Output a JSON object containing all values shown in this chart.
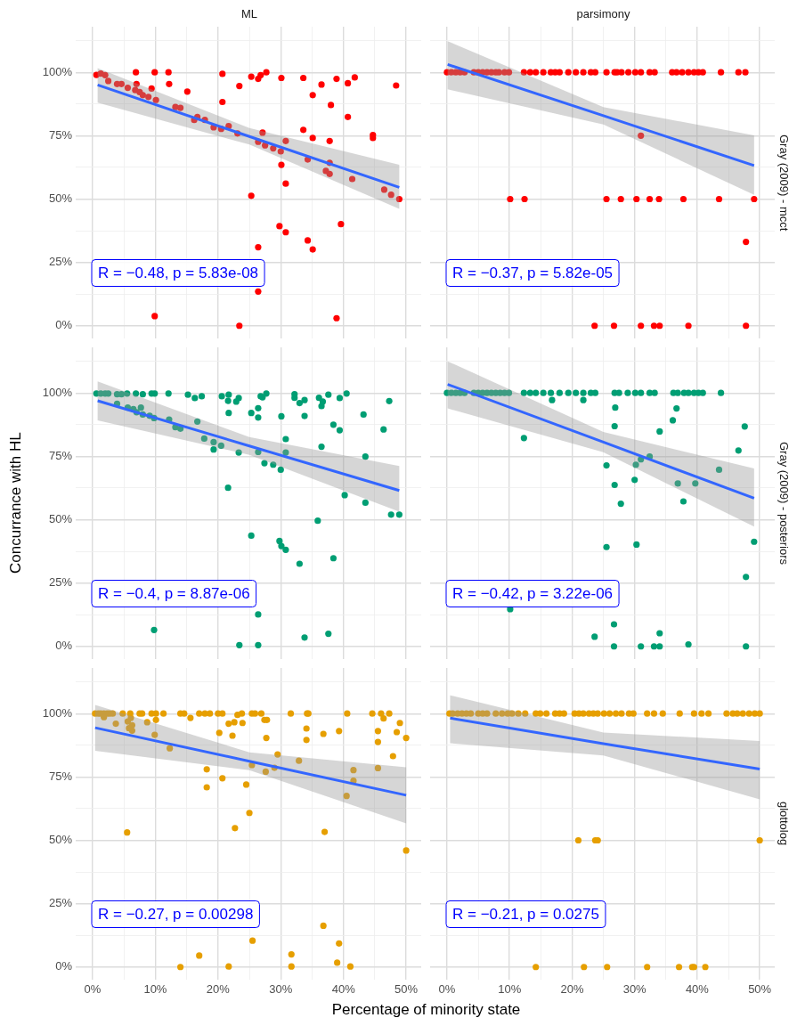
{
  "chart_data": [
    {
      "type": "scatter",
      "title": "ML",
      "tick_labels": "y",
      "grid": true,
      "legend": false,
      "xlim": [
        -2.7,
        52.4
      ],
      "ylim": [
        -5,
        118
      ],
      "xticks": [
        {
          "value": 0,
          "label": null
        },
        {
          "value": 5,
          "label": null
        },
        {
          "value": 10,
          "label": null
        },
        {
          "value": 15,
          "label": null
        },
        {
          "value": 20,
          "label": null
        },
        {
          "value": 25,
          "label": null
        },
        {
          "value": 30,
          "label": null
        },
        {
          "value": 35,
          "label": null
        },
        {
          "value": 40,
          "label": null
        },
        {
          "value": 45,
          "label": null
        },
        {
          "value": 50,
          "label": null
        }
      ],
      "yticks": [
        {
          "value": 0,
          "label": "0%"
        },
        {
          "value": 12.5,
          "label": null
        },
        {
          "value": 25,
          "label": "25%"
        },
        {
          "value": 37.5,
          "label": null
        },
        {
          "value": 50,
          "label": "50%"
        },
        {
          "value": 62.5,
          "label": null
        },
        {
          "value": 75,
          "label": "75%"
        },
        {
          "value": 87.5,
          "label": null
        },
        {
          "value": 100,
          "label": "100%"
        },
        {
          "value": 112.5,
          "label": null
        }
      ],
      "annotations": [
        "R = −0.48, p = 5.83e-08"
      ],
      "series": [
        {
          "type": "scatter",
          "color": "#ff0000",
          "marker": "circle",
          "x": [
            0.6,
            1.3,
            2,
            2.5,
            3.9,
            4.6,
            5.6,
            6.9,
            7,
            6.8,
            7.5,
            8,
            8.9,
            9.4,
            9.9,
            10.1,
            12.1,
            12.2,
            13.2,
            14,
            15.1,
            16.2,
            16.7,
            17.9,
            19.3,
            20.5,
            20.7,
            20.7,
            21.7,
            23.1,
            23.4,
            23.4,
            25.3,
            25.3,
            26.4,
            26.8,
            27.7,
            26.4,
            27.1,
            27.5,
            28.8,
            30,
            30.1,
            30.1,
            30.8,
            30.8,
            29.8,
            30.8,
            26.4,
            26.4,
            9.9,
            33.6,
            33.6,
            35.1,
            35.1,
            34.3,
            34.3,
            35.1,
            36.5,
            38,
            37.8,
            37.8,
            37.2,
            37.8,
            38.9,
            39.6,
            38.9,
            40.7,
            40.7,
            41.8,
            41.4,
            44.7,
            44.7,
            48.4,
            46.5,
            47.6,
            48.9
          ],
          "values": [
            99,
            99.5,
            98.9,
            96.6,
            95.4,
            95.4,
            93.9,
            100,
            95.4,
            93,
            92.2,
            91,
            90.3,
            93.6,
            100,
            89.1,
            100,
            95.4,
            86.3,
            86,
            92.4,
            81.2,
            82.4,
            81.2,
            78.3,
            77.7,
            99.4,
            88.3,
            78.8,
            75.9,
            94.6,
            0,
            98.3,
            51.3,
            97.4,
            98.9,
            100,
            72.6,
            76.2,
            71.2,
            70,
            68.8,
            63.5,
            97.8,
            72.9,
            56.1,
            39.3,
            36.9,
            31,
            13.5,
            3.8,
            97.8,
            77.3,
            91,
            74.1,
            65.6,
            33.7,
            30.1,
            95.2,
            87.1,
            72.9,
            64.3,
            61.1,
            59.9,
            97.4,
            40.1,
            3,
            95.7,
            82.4,
            98,
            57.9,
            75.3,
            74.1,
            94.8,
            53.7,
            51.7,
            50
          ]
        },
        {
          "type": "line",
          "color": "#3366ff",
          "marker": "none",
          "x": [
            0.8,
            25,
            48.9
          ],
          "values": [
            95,
            74.7,
            54.6
          ],
          "lower": [
            88,
            71.5,
            46.1
          ],
          "upper": [
            101.7,
            78,
            63.5
          ]
        }
      ]
    },
    {
      "type": "scatter",
      "title": "parsimony",
      "y2label": "Gray (2009) - mcct",
      "tick_labels": false,
      "grid": true,
      "legend": false,
      "xlim": [
        -2.7,
        52.4
      ],
      "ylim": [
        -5,
        118
      ],
      "xticks": [
        {
          "value": 0,
          "label": null
        },
        {
          "value": 5,
          "label": null
        },
        {
          "value": 10,
          "label": null
        },
        {
          "value": 15,
          "label": null
        },
        {
          "value": 20,
          "label": null
        },
        {
          "value": 25,
          "label": null
        },
        {
          "value": 30,
          "label": null
        },
        {
          "value": 35,
          "label": null
        },
        {
          "value": 40,
          "label": null
        },
        {
          "value": 45,
          "label": null
        },
        {
          "value": 50,
          "label": null
        }
      ],
      "yticks": [
        {
          "value": 0,
          "label": null
        },
        {
          "value": 12.5,
          "label": null
        },
        {
          "value": 25,
          "label": null
        },
        {
          "value": 37.5,
          "label": null
        },
        {
          "value": 50,
          "label": null
        },
        {
          "value": 62.5,
          "label": null
        },
        {
          "value": 75,
          "label": null
        },
        {
          "value": 87.5,
          "label": null
        },
        {
          "value": 100,
          "label": null
        },
        {
          "value": 112.5,
          "label": null
        }
      ],
      "annotations": [
        "R = −0.37, p = 5.82e-05"
      ],
      "series": [
        {
          "type": "scatter",
          "color": "#ff0000",
          "marker": "circle",
          "x": [
            0,
            0.7,
            1.4,
            2.1,
            2.8,
            4.3,
            5,
            5.7,
            6.4,
            7.1,
            7.8,
            8.3,
            9.2,
            9.9,
            12.3,
            13.3,
            14.2,
            15.4,
            16.6,
            17.3,
            18,
            19.4,
            20.6,
            21.8,
            23,
            23.7,
            25.5,
            26.8,
            27.2,
            27.9,
            29,
            30.1,
            31,
            32.4,
            33.2,
            36,
            36.7,
            37.6,
            38.6,
            39.5,
            40.2,
            40.9,
            43.8,
            46.6,
            47.7,
            10.1,
            12.4,
            25.5,
            27.8,
            30.3,
            32.4,
            33.9,
            37.8,
            43.5,
            49.1,
            31,
            47.8,
            23.6,
            26.7,
            31,
            33.1,
            34,
            38.6,
            47.8
          ],
          "values": [
            100,
            100,
            100,
            100,
            100,
            100,
            100,
            100,
            100,
            100,
            100,
            100,
            100,
            100,
            100,
            100,
            100,
            100,
            100,
            100,
            100,
            100,
            100,
            100,
            100,
            100,
            100,
            100,
            100,
            100,
            100,
            100,
            100,
            100,
            100,
            100,
            100,
            100,
            100,
            100,
            100,
            100,
            100,
            100,
            100,
            50,
            50,
            50,
            50,
            50,
            50,
            50,
            50,
            50,
            50,
            75,
            33.1,
            0,
            0,
            0,
            0,
            0,
            0,
            0
          ]
        },
        {
          "type": "line",
          "color": "#3366ff",
          "marker": "none",
          "x": [
            0.1,
            25,
            49.1
          ],
          "values": [
            103.1,
            82.9,
            63.2
          ],
          "lower": [
            93.3,
            79.4,
            51.7
          ],
          "upper": [
            112.3,
            86.3,
            75.1
          ]
        }
      ]
    },
    {
      "type": "scatter",
      "ylabel": "Concurrance with HL",
      "tick_labels": "y",
      "grid": true,
      "legend": false,
      "xlim": [
        -2.7,
        52.4
      ],
      "ylim": [
        -5,
        118
      ],
      "xticks": [
        {
          "value": 0,
          "label": null
        },
        {
          "value": 5,
          "label": null
        },
        {
          "value": 10,
          "label": null
        },
        {
          "value": 15,
          "label": null
        },
        {
          "value": 20,
          "label": null
        },
        {
          "value": 25,
          "label": null
        },
        {
          "value": 30,
          "label": null
        },
        {
          "value": 35,
          "label": null
        },
        {
          "value": 40,
          "label": null
        },
        {
          "value": 45,
          "label": null
        },
        {
          "value": 50,
          "label": null
        }
      ],
      "yticks": [
        {
          "value": 0,
          "label": "0%"
        },
        {
          "value": 12.5,
          "label": null
        },
        {
          "value": 25,
          "label": "25%"
        },
        {
          "value": 37.5,
          "label": null
        },
        {
          "value": 50,
          "label": "50%"
        },
        {
          "value": 62.5,
          "label": null
        },
        {
          "value": 75,
          "label": "75%"
        },
        {
          "value": 87.5,
          "label": null
        },
        {
          "value": 100,
          "label": "100%"
        },
        {
          "value": 112.5,
          "label": null
        }
      ],
      "annotations": [
        "R = −0.4, p = 8.87e-06"
      ],
      "series": [
        {
          "type": "scatter",
          "color": "#009e73",
          "marker": "circle",
          "x": [
            0.6,
            1.3,
            2,
            2.5,
            3.9,
            4.6,
            5.5,
            6.9,
            8,
            9.4,
            9.9,
            12.1,
            15.2,
            16.3,
            17.4,
            20.6,
            21.7,
            21.6,
            22.9,
            23.3,
            26.8,
            27.1,
            27.7,
            32.2,
            32.2,
            33,
            33.8,
            36.1,
            36.7,
            36.5,
            37.6,
            39.4,
            40.5,
            47.3,
            3.9,
            5.6,
            6.5,
            7,
            7.7,
            8,
            9.1,
            9.8,
            12.2,
            13.2,
            14,
            16.7,
            17.8,
            19.3,
            19.3,
            20.5,
            21.7,
            21.6,
            23.3,
            25.3,
            25.3,
            26.4,
            26.4,
            26.4,
            27.4,
            28.8,
            30,
            30.1,
            29.8,
            30.1,
            30.8,
            30.8,
            30.8,
            33.8,
            33,
            33.8,
            26.4,
            26.4,
            23.4,
            9.8,
            35.9,
            36.5,
            38.4,
            38.4,
            39.4,
            40.2,
            37.6,
            43.2,
            43.5,
            43.5,
            46.4,
            47.6,
            48.9
          ],
          "values": [
            99.8,
            99.8,
            99.8,
            99.8,
            99.5,
            99.5,
            99.8,
            99.8,
            99.5,
            99.8,
            99.8,
            99.8,
            99.3,
            98,
            98.7,
            98.7,
            99.3,
            96.9,
            96.6,
            98,
            98.7,
            98.3,
            99.8,
            99.5,
            98.1,
            96,
            97.2,
            98.1,
            96.6,
            94.8,
            99.3,
            98,
            99.8,
            96.8,
            95.7,
            94.2,
            93.6,
            92.4,
            94.2,
            91.5,
            91,
            90.1,
            89.5,
            86.5,
            85.9,
            88.7,
            82,
            80.6,
            77.7,
            79.2,
            92.1,
            62.6,
            76.5,
            92.1,
            43.7,
            94,
            90.3,
            76.7,
            72.3,
            71.7,
            69.7,
            90.8,
            41.6,
            39.6,
            81.8,
            76.5,
            38.1,
            90.9,
            32.6,
            3.5,
            12.6,
            0.5,
            0.5,
            6.5,
            49.6,
            78.8,
            87.5,
            34.8,
            85.3,
            59.7,
            5,
            91.5,
            74.9,
            56.7,
            85.6,
            52,
            52
          ]
        },
        {
          "type": "line",
          "color": "#3366ff",
          "marker": "none",
          "x": [
            0.8,
            25,
            48.9
          ],
          "values": [
            96.9,
            79.1,
            61.5
          ],
          "lower": [
            89.2,
            75.6,
            53.2
          ],
          "upper": [
            104.6,
            82.6,
            71.2
          ]
        }
      ]
    },
    {
      "type": "scatter",
      "y2label": "Gray (2009) - posteriors",
      "tick_labels": false,
      "grid": true,
      "legend": false,
      "xlim": [
        -2.7,
        52.4
      ],
      "ylim": [
        -5,
        118
      ],
      "xticks": [
        {
          "value": 0,
          "label": null
        },
        {
          "value": 5,
          "label": null
        },
        {
          "value": 10,
          "label": null
        },
        {
          "value": 15,
          "label": null
        },
        {
          "value": 20,
          "label": null
        },
        {
          "value": 25,
          "label": null
        },
        {
          "value": 30,
          "label": null
        },
        {
          "value": 35,
          "label": null
        },
        {
          "value": 40,
          "label": null
        },
        {
          "value": 45,
          "label": null
        },
        {
          "value": 50,
          "label": null
        }
      ],
      "yticks": [
        {
          "value": 0,
          "label": null
        },
        {
          "value": 12.5,
          "label": null
        },
        {
          "value": 25,
          "label": null
        },
        {
          "value": 37.5,
          "label": null
        },
        {
          "value": 50,
          "label": null
        },
        {
          "value": 62.5,
          "label": null
        },
        {
          "value": 75,
          "label": null
        },
        {
          "value": 87.5,
          "label": null
        },
        {
          "value": 100,
          "label": null
        },
        {
          "value": 112.5,
          "label": null
        }
      ],
      "annotations": [
        "R = −0.42, p = 3.22e-06"
      ],
      "series": [
        {
          "type": "scatter",
          "color": "#009e73",
          "marker": "circle",
          "x": [
            0,
            0.7,
            1.4,
            2.1,
            2.8,
            4.3,
            5,
            5.7,
            6.4,
            7.1,
            7.8,
            8.5,
            9.2,
            9.9,
            12.3,
            13.3,
            14.2,
            15.4,
            16.6,
            18,
            19.4,
            20.6,
            21.8,
            23,
            23.7,
            26.8,
            27.5,
            28.9,
            30.1,
            31,
            32.4,
            33.2,
            36.2,
            36.9,
            37.9,
            38.6,
            39.5,
            40.2,
            40.9,
            43.8,
            16.8,
            21.8,
            26.9,
            26.8,
            12.3,
            36.7,
            36.1,
            34,
            47.6,
            46.6,
            32.4,
            31,
            30.2,
            25.5,
            43.5,
            26.8,
            30,
            36.9,
            39.7,
            27.8,
            37.8,
            25.5,
            30.3,
            49.1,
            47.8,
            10.1,
            26.7,
            23.6,
            34,
            26.7,
            31,
            33.1,
            34,
            38.6,
            47.8
          ],
          "values": [
            100,
            100,
            100,
            100,
            100,
            100,
            100,
            100,
            100,
            100,
            100,
            100,
            100,
            100,
            100,
            100,
            100,
            100,
            100,
            100,
            100,
            100,
            100,
            100,
            100,
            100,
            100,
            100,
            100,
            100,
            100,
            100,
            100,
            100,
            100,
            100,
            100,
            100,
            100,
            100,
            97.2,
            97.2,
            94.2,
            86.9,
            82.2,
            93.9,
            89.2,
            84.8,
            86.8,
            77.3,
            74.9,
            73.8,
            71.7,
            71.4,
            69.7,
            63.7,
            65.7,
            64.3,
            64.3,
            56.3,
            57.2,
            39.2,
            40.2,
            41.3,
            27.4,
            14.7,
            8.7,
            3.8,
            5.2,
            0,
            0,
            0,
            0,
            0.8,
            0
          ]
        },
        {
          "type": "line",
          "color": "#3366ff",
          "marker": "none",
          "x": [
            0.1,
            25,
            49.1
          ],
          "values": [
            103.4,
            80.6,
            58.5
          ],
          "lower": [
            93.9,
            76.6,
            47.3
          ],
          "upper": [
            112.5,
            84.6,
            70.2
          ]
        }
      ]
    },
    {
      "type": "scatter",
      "xlabel": "Percentage of minority state",
      "grid": true,
      "legend": false,
      "xlim": [
        -2.7,
        52.4
      ],
      "ylim": [
        -5,
        118
      ],
      "xticks": [
        {
          "value": 0,
          "label": "0%"
        },
        {
          "value": 5,
          "label": null
        },
        {
          "value": 10,
          "label": "10%"
        },
        {
          "value": 15,
          "label": null
        },
        {
          "value": 20,
          "label": "20%"
        },
        {
          "value": 25,
          "label": null
        },
        {
          "value": 30,
          "label": "30%"
        },
        {
          "value": 35,
          "label": null
        },
        {
          "value": 40,
          "label": "40%"
        },
        {
          "value": 45,
          "label": null
        },
        {
          "value": 50,
          "label": "50%"
        }
      ],
      "yticks": [
        {
          "value": 0,
          "label": "0%"
        },
        {
          "value": 12.5,
          "label": null
        },
        {
          "value": 25,
          "label": "25%"
        },
        {
          "value": 37.5,
          "label": null
        },
        {
          "value": 50,
          "label": "50%"
        },
        {
          "value": 62.5,
          "label": null
        },
        {
          "value": 75,
          "label": "75%"
        },
        {
          "value": 87.5,
          "label": null
        },
        {
          "value": 100,
          "label": "100%"
        },
        {
          "value": 112.5,
          "label": null
        }
      ],
      "annotations": [
        "R = −0.27, p = 0.00298"
      ],
      "series": [
        {
          "type": "scatter",
          "color": "#e69f00",
          "marker": "circle",
          "x": [
            0.4,
            0.9,
            1.3,
            1.8,
            2.3,
            2.7,
            3.2,
            4.8,
            6,
            7.5,
            7.9,
            9.4,
            10.1,
            11.3,
            14,
            14.6,
            17,
            17.9,
            18.7,
            20,
            20.7,
            23.8,
            25.4,
            25.9,
            26.9,
            31.6,
            34.2,
            34.4,
            40.6,
            44.6,
            46,
            47.3,
            15.6,
            23.1,
            27.4,
            27.8,
            46.4,
            10.1,
            6.1,
            1.8,
            3.7,
            5.6,
            5.8,
            6.3,
            6.3,
            8.7,
            9.9,
            12.3,
            18.2,
            18.2,
            20.2,
            20.7,
            21.7,
            22.3,
            22.6,
            22.7,
            23.9,
            24.5,
            25,
            25.4,
            27.7,
            27.6,
            29,
            29.5,
            32.9,
            34.1,
            34.1,
            36.8,
            37,
            39.3,
            40.5,
            41.6,
            41.6,
            45.5,
            45.5,
            45.5,
            47.9,
            48.5,
            49,
            50,
            50,
            5.5,
            36.8,
            39.3,
            39,
            41.1,
            31.7,
            31.7,
            25.5,
            21.7,
            17,
            14
          ],
          "values": [
            100,
            100,
            100,
            100,
            100,
            100,
            100,
            100,
            100,
            100,
            100,
            100,
            100,
            100,
            100,
            100,
            100,
            100,
            100,
            100,
            100,
            100,
            100,
            100,
            100,
            100,
            100,
            100,
            100,
            100,
            100,
            100,
            98.3,
            99.5,
            97.5,
            97.5,
            98.1,
            97.5,
            98.3,
            98.6,
            96,
            96.9,
            94.2,
            95.4,
            93.3,
            96.6,
            91.6,
            86.3,
            78,
            70.9,
            92.4,
            74.5,
            96,
            91.3,
            96.6,
            54.8,
            96.3,
            72,
            60.8,
            79.7,
            90.4,
            77.1,
            78.6,
            83.9,
            81.4,
            94.1,
            89.6,
            92,
            53.3,
            93.1,
            67.5,
            77.7,
            73.5,
            93.1,
            88.8,
            78.5,
            83.2,
            92.7,
            96.3,
            90.4,
            46,
            53.1,
            16.3,
            9.3,
            1.7,
            0.2,
            5,
            0.2,
            10.4,
            0.2,
            4.5,
            0
          ]
        },
        {
          "type": "line",
          "color": "#3366ff",
          "marker": "none",
          "x": [
            0.4,
            25,
            50
          ],
          "values": [
            94.4,
            81.2,
            67.8
          ],
          "lower": [
            85.3,
            77.7,
            56.7
          ],
          "upper": [
            103.4,
            84.7,
            78.8
          ]
        }
      ]
    },
    {
      "type": "scatter",
      "y2label": "glottolog",
      "tick_labels": "x",
      "grid": true,
      "legend": false,
      "xlim": [
        -2.7,
        52.4
      ],
      "ylim": [
        -5,
        118
      ],
      "xticks": [
        {
          "value": 0,
          "label": "0%"
        },
        {
          "value": 5,
          "label": null
        },
        {
          "value": 10,
          "label": "10%"
        },
        {
          "value": 15,
          "label": null
        },
        {
          "value": 20,
          "label": "20%"
        },
        {
          "value": 25,
          "label": null
        },
        {
          "value": 30,
          "label": "30%"
        },
        {
          "value": 35,
          "label": null
        },
        {
          "value": 40,
          "label": "40%"
        },
        {
          "value": 45,
          "label": null
        },
        {
          "value": 50,
          "label": "50%"
        }
      ],
      "yticks": [
        {
          "value": 0,
          "label": null
        },
        {
          "value": 12.5,
          "label": null
        },
        {
          "value": 25,
          "label": null
        },
        {
          "value": 37.5,
          "label": null
        },
        {
          "value": 50,
          "label": null
        },
        {
          "value": 62.5,
          "label": null
        },
        {
          "value": 75,
          "label": null
        },
        {
          "value": 87.5,
          "label": null
        },
        {
          "value": 100,
          "label": null
        },
        {
          "value": 112.5,
          "label": null
        }
      ],
      "annotations": [
        "R = −0.21, p = 0.0275"
      ],
      "series": [
        {
          "type": "scatter",
          "color": "#e69f00",
          "marker": "circle",
          "x": [
            0.4,
            0.9,
            1.7,
            2.4,
            3.1,
            3.8,
            5,
            5.7,
            6.4,
            7.8,
            8.8,
            9.7,
            10.4,
            11.4,
            12.5,
            14.2,
            14.9,
            15.9,
            17.3,
            18,
            18.7,
            20.4,
            21.1,
            21.8,
            22.7,
            23.4,
            24.1,
            25.1,
            26,
            27,
            27.9,
            29.1,
            29.8,
            32,
            33.1,
            34.5,
            37.2,
            39.5,
            40.7,
            41.8,
            44.7,
            45.7,
            46.4,
            47.3,
            48.3,
            49.2,
            50,
            21,
            23.7,
            24.1,
            50,
            14.2,
            21.9,
            25.6,
            32,
            37.1,
            39.2,
            39.5,
            41.3
          ],
          "values": [
            100,
            100,
            100,
            100,
            100,
            100,
            100,
            100,
            100,
            100,
            100,
            100,
            100,
            100,
            100,
            100,
            100,
            100,
            100,
            100,
            100,
            100,
            100,
            100,
            100,
            100,
            100,
            100,
            100,
            100,
            100,
            100,
            100,
            100,
            100,
            100,
            100,
            100,
            100,
            100,
            100,
            100,
            100,
            100,
            100,
            100,
            100,
            50,
            50,
            50,
            50,
            0,
            0,
            0,
            0,
            0,
            0,
            0,
            0
          ]
        },
        {
          "type": "line",
          "color": "#3366ff",
          "marker": "none",
          "x": [
            0.5,
            25,
            50
          ],
          "values": [
            98.2,
            88.1,
            78.1
          ],
          "lower": [
            88.3,
            83.5,
            66.2
          ],
          "upper": [
            107.2,
            92.5,
            89.2
          ]
        }
      ]
    }
  ]
}
